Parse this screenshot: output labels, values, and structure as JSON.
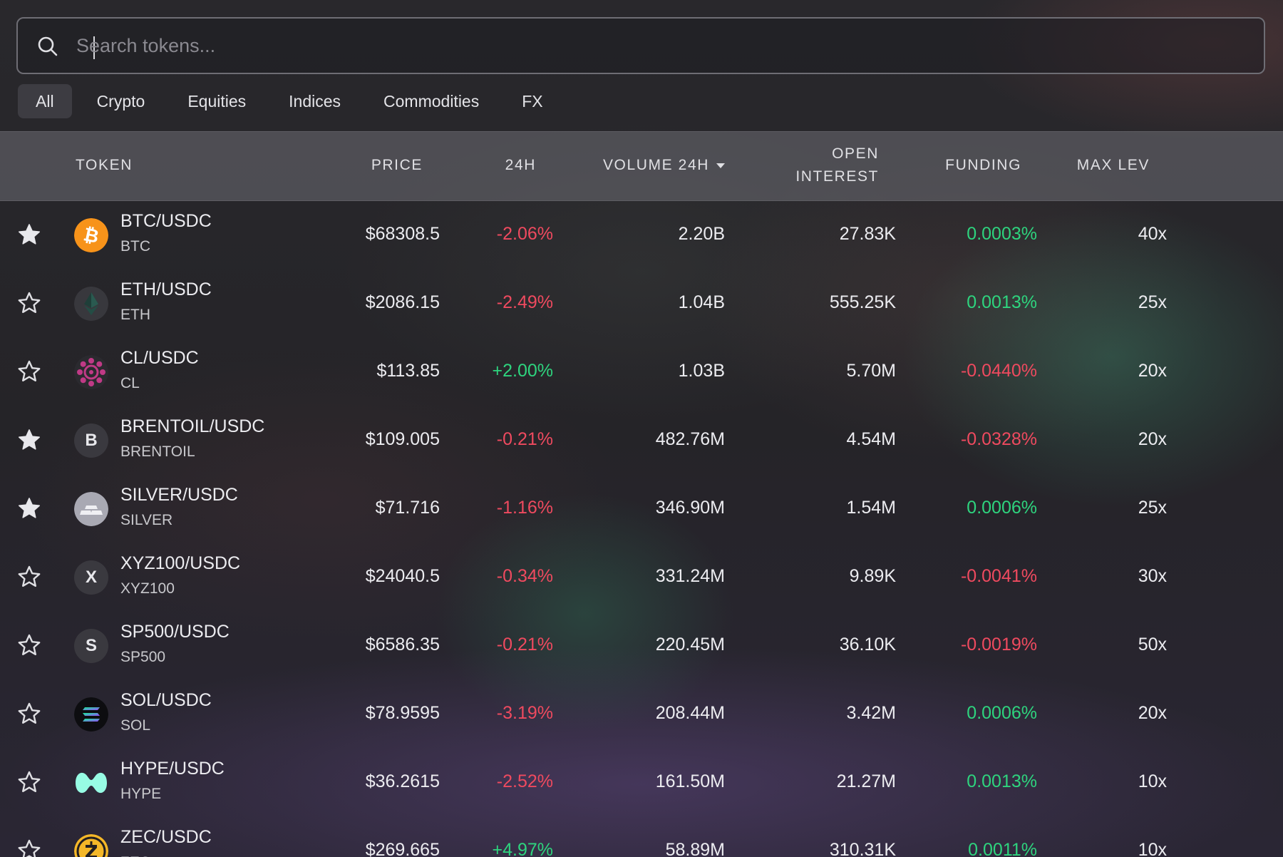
{
  "search": {
    "placeholder": "Search tokens...",
    "value": ""
  },
  "tabs": [
    {
      "label": "All",
      "active": true
    },
    {
      "label": "Crypto"
    },
    {
      "label": "Equities"
    },
    {
      "label": "Indices"
    },
    {
      "label": "Commodities"
    },
    {
      "label": "FX"
    }
  ],
  "columns": {
    "token": "TOKEN",
    "price": "PRICE",
    "change": "24H",
    "volume": "VOLUME 24H",
    "open_interest_line1": "OPEN",
    "open_interest_line2": "INTEREST",
    "funding": "FUNDING",
    "max_lev": "MAX LEV"
  },
  "colors": {
    "positive": "#2ed47e",
    "negative": "#ef4a5f"
  },
  "rows": [
    {
      "pair": "BTC/USDC",
      "symbol": "BTC",
      "icon": "bitcoin-icon",
      "favorite": true,
      "price": "$68308.5",
      "change": "-2.06%",
      "volume": "2.20B",
      "open_interest": "27.83K",
      "funding": "0.0003%",
      "max_lev": "40x"
    },
    {
      "pair": "ETH/USDC",
      "symbol": "ETH",
      "icon": "ethereum-icon",
      "favorite": false,
      "price": "$2086.15",
      "change": "-2.49%",
      "volume": "1.04B",
      "open_interest": "555.25K",
      "funding": "0.0013%",
      "max_lev": "25x"
    },
    {
      "pair": "CL/USDC",
      "symbol": "CL",
      "icon": "crude-oil-icon",
      "favorite": false,
      "price": "$113.85",
      "change": "+2.00%",
      "volume": "1.03B",
      "open_interest": "5.70M",
      "funding": "-0.0440%",
      "max_lev": "20x"
    },
    {
      "pair": "BRENTOIL/USDC",
      "symbol": "BRENTOIL",
      "icon": "letter-b-icon",
      "letter": "B",
      "favorite": true,
      "price": "$109.005",
      "change": "-0.21%",
      "volume": "482.76M",
      "open_interest": "4.54M",
      "funding": "-0.0328%",
      "max_lev": "20x"
    },
    {
      "pair": "SILVER/USDC",
      "symbol": "SILVER",
      "icon": "silver-bars-icon",
      "favorite": true,
      "price": "$71.716",
      "change": "-1.16%",
      "volume": "346.90M",
      "open_interest": "1.54M",
      "funding": "0.0006%",
      "max_lev": "25x"
    },
    {
      "pair": "XYZ100/USDC",
      "symbol": "XYZ100",
      "icon": "letter-x-icon",
      "letter": "X",
      "favorite": false,
      "price": "$24040.5",
      "change": "-0.34%",
      "volume": "331.24M",
      "open_interest": "9.89K",
      "funding": "-0.0041%",
      "max_lev": "30x"
    },
    {
      "pair": "SP500/USDC",
      "symbol": "SP500",
      "icon": "letter-s-icon",
      "letter": "S",
      "favorite": false,
      "price": "$6586.35",
      "change": "-0.21%",
      "volume": "220.45M",
      "open_interest": "36.10K",
      "funding": "-0.0019%",
      "max_lev": "50x"
    },
    {
      "pair": "SOL/USDC",
      "symbol": "SOL",
      "icon": "solana-icon",
      "favorite": false,
      "price": "$78.9595",
      "change": "-3.19%",
      "volume": "208.44M",
      "open_interest": "3.42M",
      "funding": "0.0006%",
      "max_lev": "20x"
    },
    {
      "pair": "HYPE/USDC",
      "symbol": "HYPE",
      "icon": "hyperliquid-icon",
      "favorite": false,
      "price": "$36.2615",
      "change": "-2.52%",
      "volume": "161.50M",
      "open_interest": "21.27M",
      "funding": "0.0013%",
      "max_lev": "10x"
    },
    {
      "pair": "ZEC/USDC",
      "symbol": "ZEC",
      "icon": "zcash-icon",
      "favorite": false,
      "price": "$269.665",
      "change": "+4.97%",
      "volume": "58.89M",
      "open_interest": "310.31K",
      "funding": "0.0011%",
      "max_lev": "10x"
    }
  ]
}
